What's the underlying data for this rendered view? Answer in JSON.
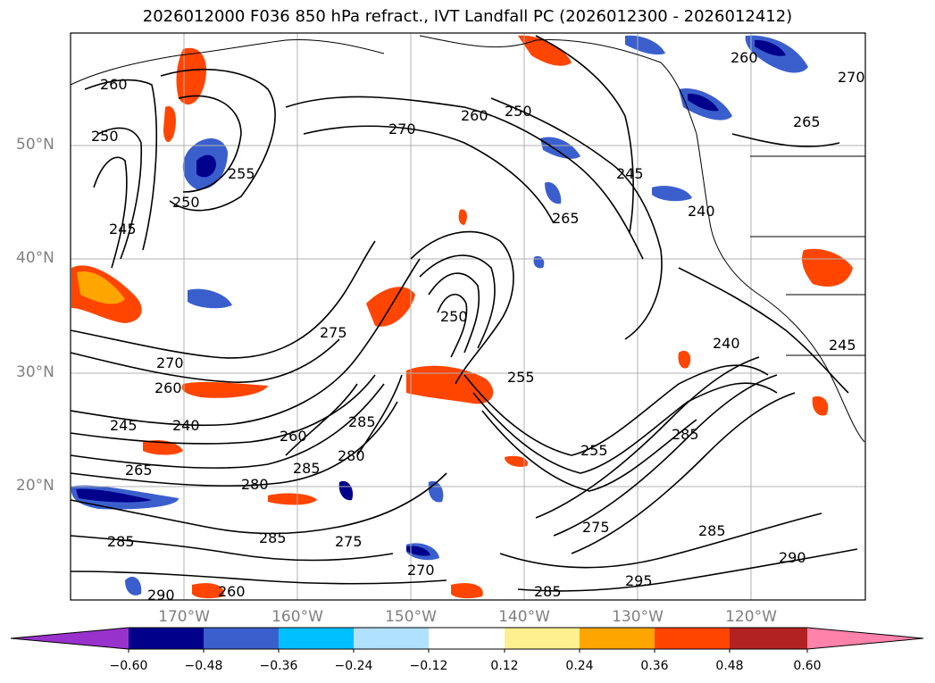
{
  "title": "2026012000 F036 850 hPa refract., IVT Landfall PC (2026012300 - 2026012412)",
  "map": {
    "lat_labels": [
      "50°N",
      "40°N",
      "30°N",
      "20°N"
    ],
    "lon_labels": [
      "170°W",
      "160°W",
      "150°W",
      "140°W",
      "130°W",
      "120°W"
    ],
    "contour_labels": [
      "260",
      "250",
      "270",
      "245",
      "250",
      "255",
      "270",
      "260",
      "250",
      "245",
      "265",
      "240",
      "265",
      "260",
      "275",
      "250",
      "270",
      "260",
      "255",
      "245",
      "240",
      "285",
      "260",
      "280",
      "265",
      "285",
      "280",
      "255",
      "285",
      "240",
      "245",
      "285",
      "290",
      "275",
      "285",
      "295",
      "275",
      "285",
      "270",
      "290",
      "285",
      "260"
    ]
  },
  "colorbar": {
    "colors": [
      "#9932cc",
      "#00008b",
      "#3a5fcd",
      "#00bfff",
      "#b0e2ff",
      "#ffffff",
      "#fff08f",
      "#ffa500",
      "#ff4500",
      "#b22222",
      "#ff82ab"
    ],
    "tick_labels": [
      "−0.60",
      "−0.48",
      "−0.36",
      "−0.24",
      "−0.12",
      "0.12",
      "0.24",
      "0.36",
      "0.48",
      "0.60"
    ]
  }
}
